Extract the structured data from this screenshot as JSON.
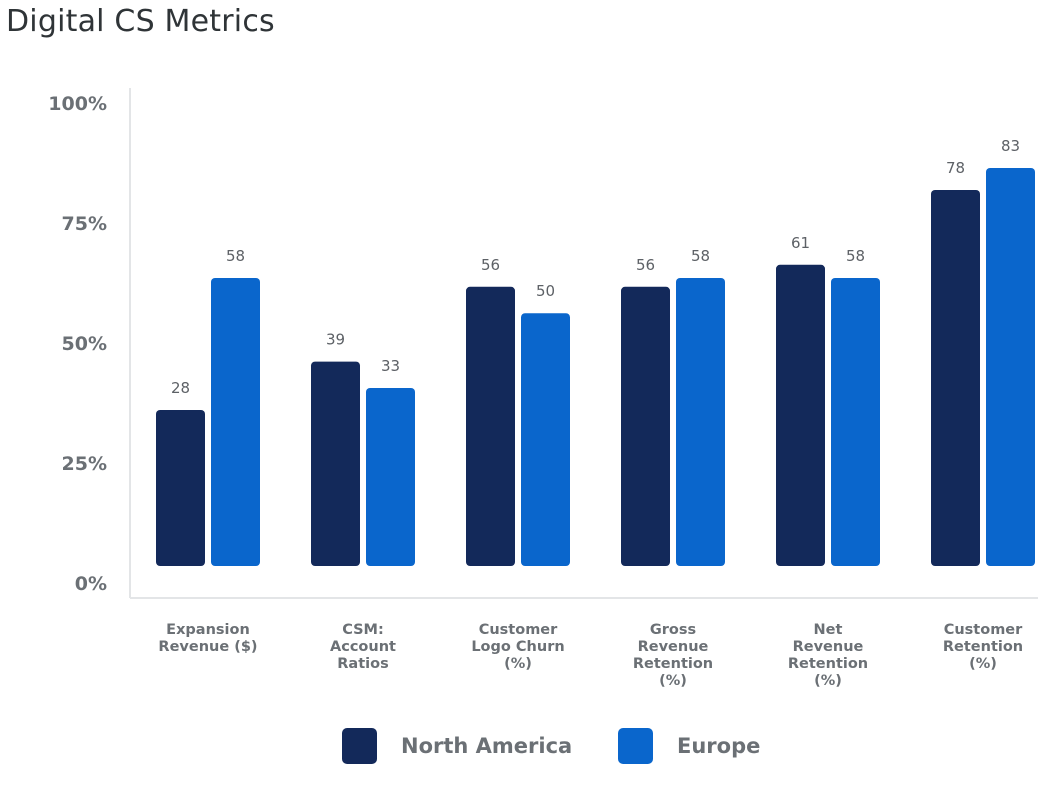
{
  "chart_data": {
    "type": "bar",
    "title": "Digital CS Metrics",
    "xlabel": "",
    "ylabel": "",
    "ylim": [
      0,
      100
    ],
    "yticks": [
      "0%",
      "25%",
      "50%",
      "75%",
      "100%"
    ],
    "grid": false,
    "legend_position": "bottom-center",
    "categories": [
      "Expansion\nRevenue ($)",
      "CSM:\nAccount\nRatios",
      "Customer\nLogo Churn\n(%)",
      "Gross\nRevenue\nRetention\n(%)",
      "Net\nRevenue\nRetention\n(%)",
      "Customer\nRetention\n(%)"
    ],
    "series": [
      {
        "name": "North America",
        "color": "#13295a",
        "values": [
          28,
          39,
          56,
          56,
          61,
          78
        ]
      },
      {
        "name": "Europe",
        "color": "#0a66cc",
        "values": [
          58,
          33,
          50,
          58,
          58,
          83
        ]
      }
    ]
  }
}
